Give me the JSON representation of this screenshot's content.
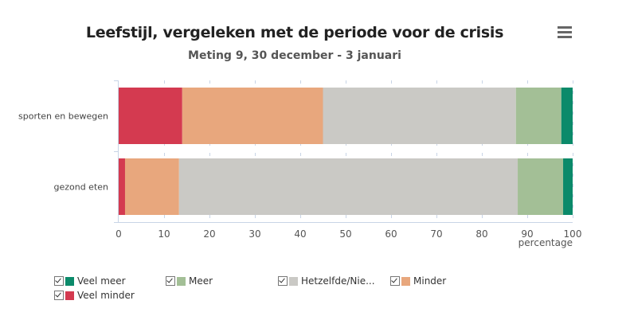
{
  "menu": {
    "icon": "hamburger-menu-icon"
  },
  "chart_data": {
    "type": "bar",
    "orientation": "horizontal",
    "stacked": true,
    "title": "Leefstijl, vergeleken met de periode voor de crisis",
    "subtitle": "Meting 9, 30 december - 3 januari",
    "categories": [
      "sporten en bewegen",
      "gezond eten"
    ],
    "xlabel": "percentage",
    "ylabel": "",
    "xlim": [
      0,
      100
    ],
    "xticks": [
      "0",
      "10",
      "20",
      "30",
      "40",
      "50",
      "60",
      "70",
      "80",
      "90",
      "100"
    ],
    "grid": true,
    "legend_position": "bottom-left",
    "series": [
      {
        "name": "Veel minder",
        "color": "#d43a50",
        "values": [
          14,
          1.4
        ]
      },
      {
        "name": "Minder",
        "color": "#e8a77d",
        "values": [
          31,
          11.9
        ]
      },
      {
        "name": "Hetzelfde/Niet van toepassing",
        "color": "#cac9c5",
        "values": [
          42.5,
          74.6
        ]
      },
      {
        "name": "Meer",
        "color": "#a3bf96",
        "values": [
          10,
          10
        ]
      },
      {
        "name": "Veel meer",
        "color": "#0b8a6a",
        "values": [
          2.5,
          2.1
        ]
      }
    ]
  },
  "legend": [
    {
      "label": "Veel meer",
      "color": "#0b8a6a"
    },
    {
      "label": "Meer",
      "color": "#a3bf96"
    },
    {
      "label": "Hetzelfde/Nie...",
      "color": "#cac9c5"
    },
    {
      "label": "Minder",
      "color": "#e8a77d"
    },
    {
      "label": "Veel minder",
      "color": "#d43a50"
    }
  ]
}
